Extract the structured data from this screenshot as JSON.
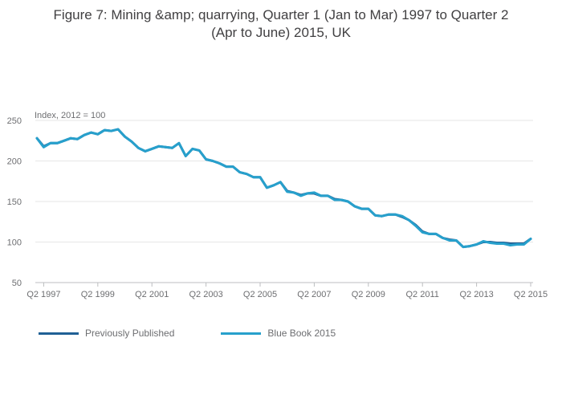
{
  "title_line1": "Figure 7: Mining &amp; quarrying, Quarter 1 (Jan to Mar) 1997 to Quarter 2",
  "title_line2": "(Apr to June) 2015, UK",
  "chart_data": {
    "type": "line",
    "ylabel": "Index, 2012 = 100",
    "ylim": [
      50,
      250
    ],
    "yticks": [
      50,
      100,
      150,
      200,
      250
    ],
    "x_tick_labels": [
      "Q2 1997",
      "Q2 1999",
      "Q2 2001",
      "Q2 2003",
      "Q2 2005",
      "Q2 2007",
      "Q2 2009",
      "Q2 2011",
      "Q2 2013",
      "Q2 2015"
    ],
    "grid": true,
    "legend_position": "bottom-left",
    "x": [
      "Q1 1997",
      "Q2 1997",
      "Q3 1997",
      "Q4 1997",
      "Q1 1998",
      "Q2 1998",
      "Q3 1998",
      "Q4 1998",
      "Q1 1999",
      "Q2 1999",
      "Q3 1999",
      "Q4 1999",
      "Q1 2000",
      "Q2 2000",
      "Q3 2000",
      "Q4 2000",
      "Q1 2001",
      "Q2 2001",
      "Q3 2001",
      "Q4 2001",
      "Q1 2002",
      "Q2 2002",
      "Q3 2002",
      "Q4 2002",
      "Q1 2003",
      "Q2 2003",
      "Q3 2003",
      "Q4 2003",
      "Q1 2004",
      "Q2 2004",
      "Q3 2004",
      "Q4 2004",
      "Q1 2005",
      "Q2 2005",
      "Q3 2005",
      "Q4 2005",
      "Q1 2006",
      "Q2 2006",
      "Q3 2006",
      "Q4 2006",
      "Q1 2007",
      "Q2 2007",
      "Q3 2007",
      "Q4 2007",
      "Q1 2008",
      "Q2 2008",
      "Q3 2008",
      "Q4 2008",
      "Q1 2009",
      "Q2 2009",
      "Q3 2009",
      "Q4 2009",
      "Q1 2010",
      "Q2 2010",
      "Q3 2010",
      "Q4 2010",
      "Q1 2011",
      "Q2 2011",
      "Q3 2011",
      "Q4 2011",
      "Q1 2012",
      "Q2 2012",
      "Q3 2012",
      "Q4 2012",
      "Q1 2013",
      "Q2 2013",
      "Q3 2013",
      "Q4 2013",
      "Q1 2014",
      "Q2 2014",
      "Q3 2014",
      "Q4 2014",
      "Q1 2015",
      "Q2 2015"
    ],
    "series": [
      {
        "name": "Previously Published",
        "color": "#206095",
        "values": [
          228,
          218,
          222,
          222,
          225,
          228,
          227,
          232,
          235,
          233,
          238,
          237,
          239,
          230,
          224,
          216,
          212,
          215,
          218,
          217,
          216,
          222,
          206,
          215,
          213,
          202,
          200,
          197,
          193,
          193,
          186,
          184,
          180,
          180,
          167,
          170,
          174,
          163,
          161,
          158,
          160,
          160,
          157,
          157,
          153,
          152,
          150,
          144,
          141,
          141,
          133,
          132,
          134,
          134,
          131,
          127,
          121,
          113,
          110,
          110,
          105,
          103,
          102,
          94,
          95,
          97,
          100,
          100,
          99,
          99,
          98,
          98,
          98,
          104
        ]
      },
      {
        "name": "Blue Book 2015",
        "color": "#27a0cc",
        "values": [
          228,
          217,
          222,
          222,
          225,
          228,
          227,
          232,
          235,
          233,
          238,
          237,
          239,
          230,
          224,
          216,
          212,
          215,
          218,
          217,
          216,
          222,
          206,
          215,
          213,
          202,
          200,
          197,
          193,
          193,
          186,
          184,
          180,
          180,
          167,
          170,
          174,
          162,
          161,
          157,
          160,
          161,
          157,
          157,
          152,
          152,
          150,
          144,
          141,
          141,
          133,
          132,
          134,
          134,
          132,
          127,
          120,
          112,
          110,
          110,
          105,
          102,
          102,
          94,
          95,
          97,
          101,
          99,
          98,
          98,
          96,
          97,
          97,
          104
        ]
      }
    ]
  }
}
